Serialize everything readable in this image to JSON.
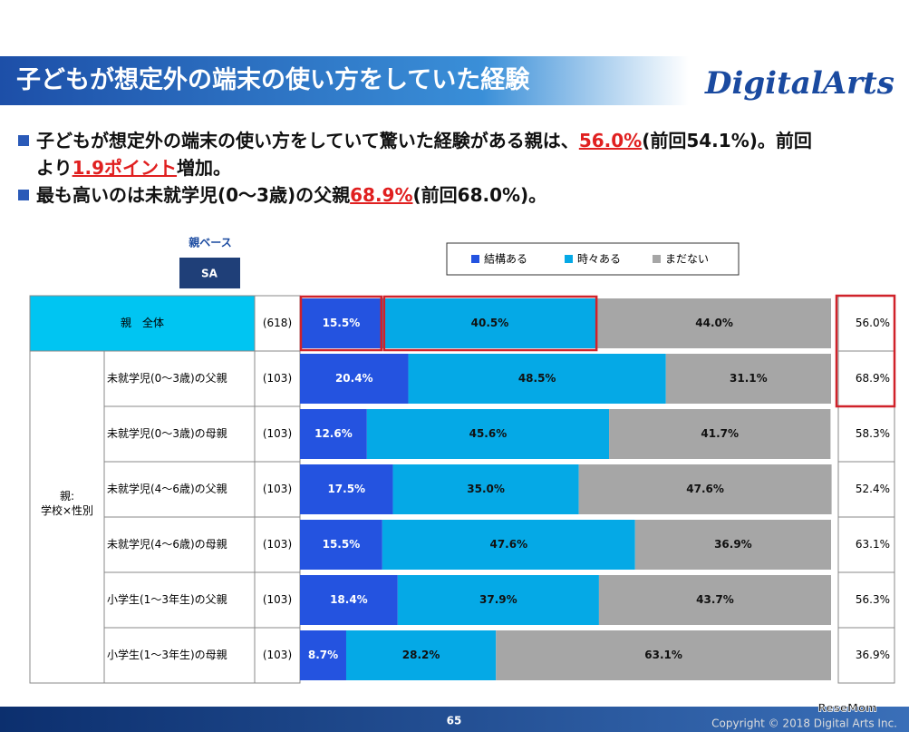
{
  "header": {
    "title": "子どもが想定外の端末の使い方をしていた経験",
    "logo": "DigitalArts"
  },
  "bullets": [
    [
      "子どもが想定外の端末の使い方をしていて驚いた経験がある親は、",
      "56.0%",
      "(前回54.1%)。前回より",
      "1.9ポイント",
      "増加。"
    ],
    [
      "最も高いのは未就学児(0～3歳)の父親",
      "68.9%",
      "(前回68.0%)。"
    ]
  ],
  "chart_data": {
    "type": "stacked-bar",
    "base_label": "親ベース",
    "base_tag": "SA",
    "categories": [
      "親　全体",
      "未就学児(0～3歳)の父親",
      "未就学児(0～3歳)の母親",
      "未就学児(4～6歳)の父親",
      "未就学児(4～6歳)の母親",
      "小学生(1～3年生)の父親",
      "小学生(1～3年生)の母親"
    ],
    "group_label": [
      "親:",
      "学校×性別"
    ],
    "n_labels": [
      "(618)",
      "(103)",
      "(103)",
      "(103)",
      "(103)",
      "(103)",
      "(103)"
    ],
    "xlim": [
      0,
      100
    ],
    "series": [
      {
        "name": "結構ある",
        "color": "#2453e0",
        "values": [
          15.5,
          20.4,
          12.6,
          17.5,
          15.5,
          18.4,
          8.7
        ],
        "value_labels": [
          "15.5%",
          "20.4%",
          "12.6%",
          "17.5%",
          "15.5%",
          "18.4%",
          "8.7%"
        ]
      },
      {
        "name": "時々ある",
        "color": "#05a9e6",
        "values": [
          40.5,
          48.5,
          45.6,
          35.0,
          47.6,
          37.9,
          28.2
        ],
        "value_labels": [
          "40.5%",
          "48.5%",
          "45.6%",
          "35.0%",
          "47.6%",
          "37.9%",
          "28.2%"
        ]
      },
      {
        "name": "まだない",
        "color": "#a6a6a6",
        "values": [
          44.0,
          31.1,
          41.7,
          47.6,
          36.9,
          43.7,
          63.1
        ],
        "value_labels": [
          "44.0%",
          "31.1%",
          "41.7%",
          "47.6%",
          "36.9%",
          "43.7%",
          "63.1%"
        ]
      }
    ],
    "totals": {
      "values": [
        56.0,
        68.9,
        58.3,
        52.4,
        63.1,
        56.3,
        36.9
      ],
      "value_labels": [
        "56.0%",
        "68.9%",
        "58.3%",
        "52.4%",
        "63.1%",
        "56.3%",
        "36.9%"
      ]
    }
  },
  "footer": {
    "page": "65",
    "copyright": "Copyright © 2018 Digital Arts Inc.",
    "watermark": "ReseMom"
  }
}
